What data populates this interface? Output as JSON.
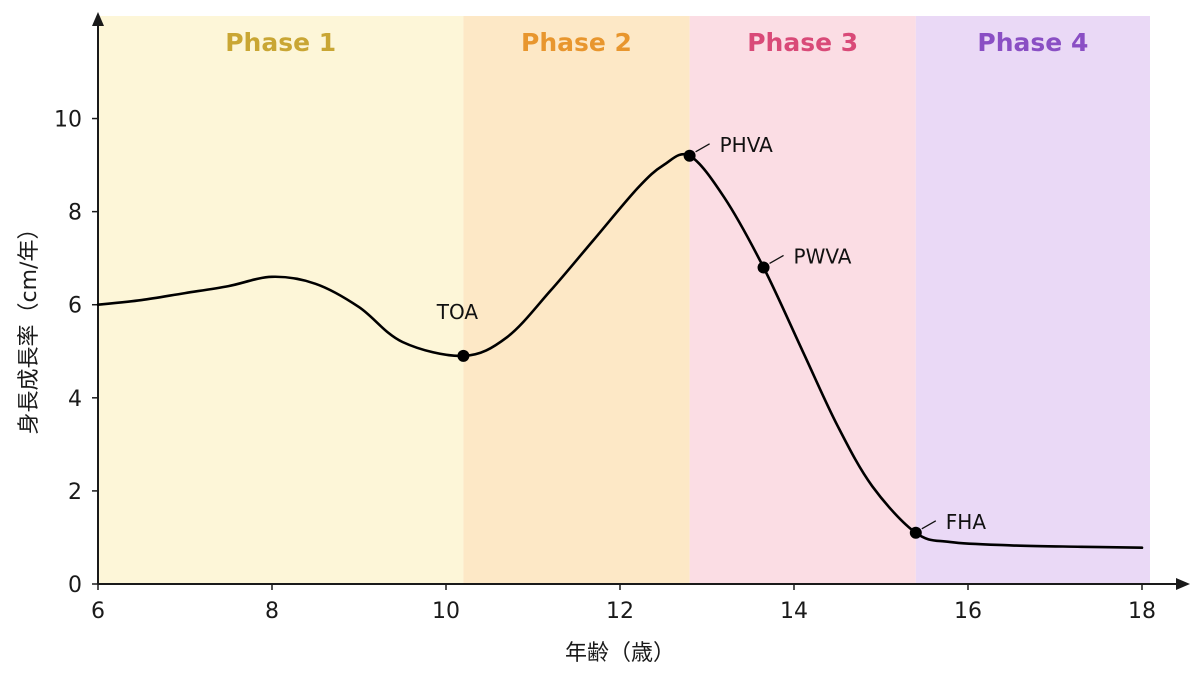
{
  "chart_data": {
    "type": "line",
    "xlabel": "年齢（歳）",
    "ylabel": "身長成長率（cm/年）",
    "xlim": [
      6,
      18
    ],
    "ylim": [
      0,
      11
    ],
    "x_ticks": [
      6,
      8,
      10,
      12,
      14,
      16,
      18
    ],
    "y_ticks": [
      0,
      2,
      4,
      6,
      8,
      10
    ],
    "grid": false,
    "phases": [
      {
        "label": "Phase 1",
        "start": 6.0,
        "end": 10.2,
        "fill": "#fdf6d8",
        "text_color": "#c9a634"
      },
      {
        "label": "Phase 2",
        "start": 10.2,
        "end": 12.8,
        "fill": "#fde8c6",
        "text_color": "#e8962e"
      },
      {
        "label": "Phase 3",
        "start": 12.8,
        "end": 15.4,
        "fill": "#fbdde4",
        "text_color": "#d94a78"
      },
      {
        "label": "Phase 4",
        "start": 15.4,
        "end": 18.0,
        "fill": "#ead9f6",
        "text_color": "#8a4fc4"
      }
    ],
    "series": [
      {
        "line_color": "#000000",
        "points": [
          [
            6.0,
            6.0
          ],
          [
            6.5,
            6.1
          ],
          [
            7.0,
            6.25
          ],
          [
            7.5,
            6.4
          ],
          [
            8.0,
            6.6
          ],
          [
            8.5,
            6.45
          ],
          [
            9.0,
            5.95
          ],
          [
            9.5,
            5.2
          ],
          [
            10.2,
            4.9
          ],
          [
            10.7,
            5.3
          ],
          [
            11.2,
            6.3
          ],
          [
            11.7,
            7.4
          ],
          [
            12.2,
            8.5
          ],
          [
            12.5,
            9.0
          ],
          [
            12.8,
            9.2
          ],
          [
            13.2,
            8.3
          ],
          [
            13.65,
            6.8
          ],
          [
            14.1,
            5.0
          ],
          [
            14.5,
            3.4
          ],
          [
            14.9,
            2.1
          ],
          [
            15.4,
            1.1
          ],
          [
            15.8,
            0.9
          ],
          [
            16.5,
            0.83
          ],
          [
            17.3,
            0.8
          ],
          [
            18.0,
            0.78
          ]
        ]
      }
    ],
    "annotations": [
      {
        "label": "TOA",
        "x": 10.2,
        "y": 4.9,
        "placement": "above"
      },
      {
        "label": "PHVA",
        "x": 12.8,
        "y": 9.2,
        "placement": "upper-right"
      },
      {
        "label": "PWVA",
        "x": 13.65,
        "y": 6.8,
        "placement": "upper-right"
      },
      {
        "label": "FHA",
        "x": 15.4,
        "y": 1.1,
        "placement": "upper-right"
      }
    ]
  }
}
